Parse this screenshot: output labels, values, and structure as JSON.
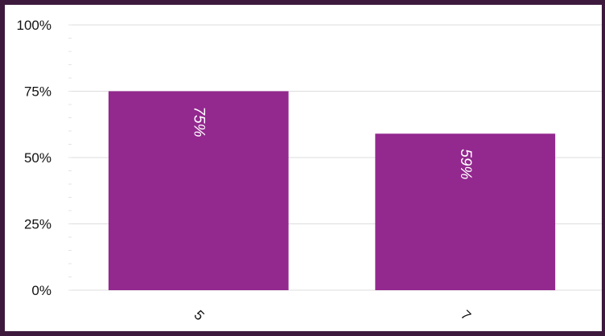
{
  "chart_data": {
    "type": "bar",
    "categories": [
      "5",
      "7"
    ],
    "values": [
      75,
      59
    ],
    "value_labels": [
      "75%",
      "59%"
    ],
    "title": "",
    "xlabel": "",
    "ylabel": "",
    "ylim": [
      0,
      100
    ],
    "y_ticks": [
      0,
      25,
      50,
      75,
      100
    ],
    "y_tick_labels": [
      "0%",
      "25%",
      "50%",
      "75%",
      "100%"
    ],
    "grid": true,
    "legend": "none",
    "colors": {
      "bar": "#93288f",
      "border": "#3d1a3d",
      "grid": "#dddddd"
    }
  }
}
